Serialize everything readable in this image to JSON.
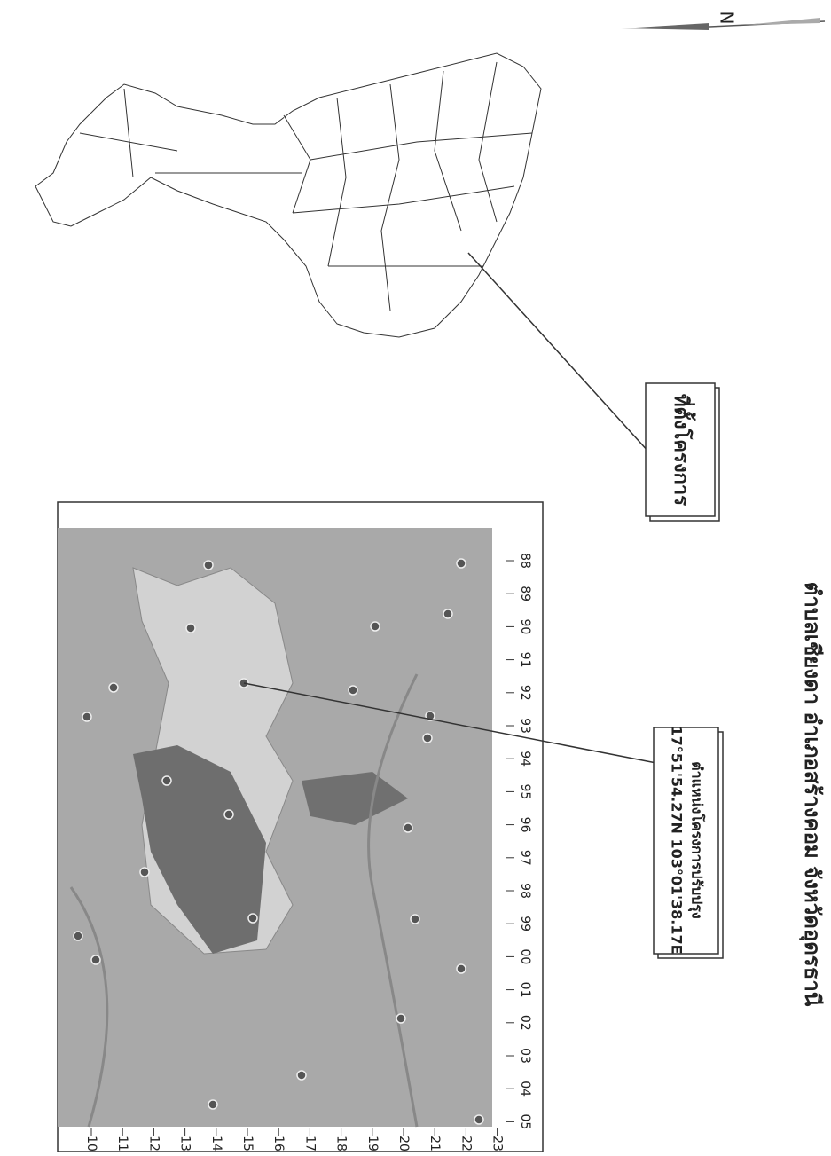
{
  "title": "ตำบลเชียงดา อำเภอสร้างคอม จังหวัดอุดรธานี",
  "location_callout": "ที่ตั้งโครงการ",
  "project_callout": {
    "label": "ตำแหน่งโครงการปรับปรุง",
    "coordinates": "17°51'54.27N 103°01'38.17E"
  },
  "north": "N",
  "grid_easting": [
    "88",
    "89",
    "90",
    "91",
    "92",
    "93",
    "94",
    "95",
    "96",
    "97",
    "98",
    "99",
    "00",
    "01",
    "02",
    "03",
    "04",
    "05"
  ],
  "grid_northing": [
    "10",
    "11",
    "12",
    "13",
    "14",
    "15",
    "16",
    "17",
    "18",
    "19",
    "20",
    "21",
    "22",
    "23"
  ]
}
